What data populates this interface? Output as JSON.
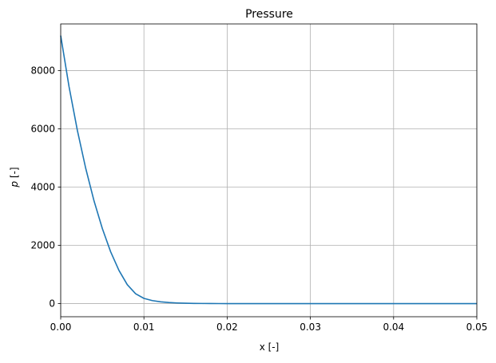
{
  "chart_data": {
    "type": "line",
    "title": "Pressure",
    "xlabel": "x [-]",
    "ylabel_symbol": "p",
    "ylabel_unit": "[-]",
    "xlim": [
      0,
      0.05
    ],
    "ylim": [
      -450,
      9600
    ],
    "grid": true,
    "x_ticks": [
      0,
      0.01,
      0.02,
      0.03,
      0.04,
      0.05
    ],
    "x_tick_labels": [
      "0.00",
      "0.01",
      "0.02",
      "0.03",
      "0.04",
      "0.05"
    ],
    "y_ticks": [
      0,
      2000,
      4000,
      6000,
      8000
    ],
    "y_tick_labels": [
      "0",
      "2000",
      "4000",
      "6000",
      "8000"
    ],
    "series": [
      {
        "color": "#1f77b4",
        "x": [
          0,
          0.001,
          0.002,
          0.003,
          0.004,
          0.005,
          0.006,
          0.007,
          0.008,
          0.009,
          0.01,
          0.011,
          0.012,
          0.013,
          0.014,
          0.015,
          0.016,
          0.017,
          0.018,
          0.019,
          0.02,
          0.025,
          0.03,
          0.035,
          0.04,
          0.045,
          0.05
        ],
        "y": [
          9200,
          7450,
          5950,
          4650,
          3530,
          2580,
          1780,
          1140,
          650,
          340,
          180,
          105,
          62,
          37,
          22,
          13,
          8,
          5,
          3,
          2,
          1,
          0,
          0,
          0,
          0,
          0,
          0
        ]
      }
    ]
  }
}
